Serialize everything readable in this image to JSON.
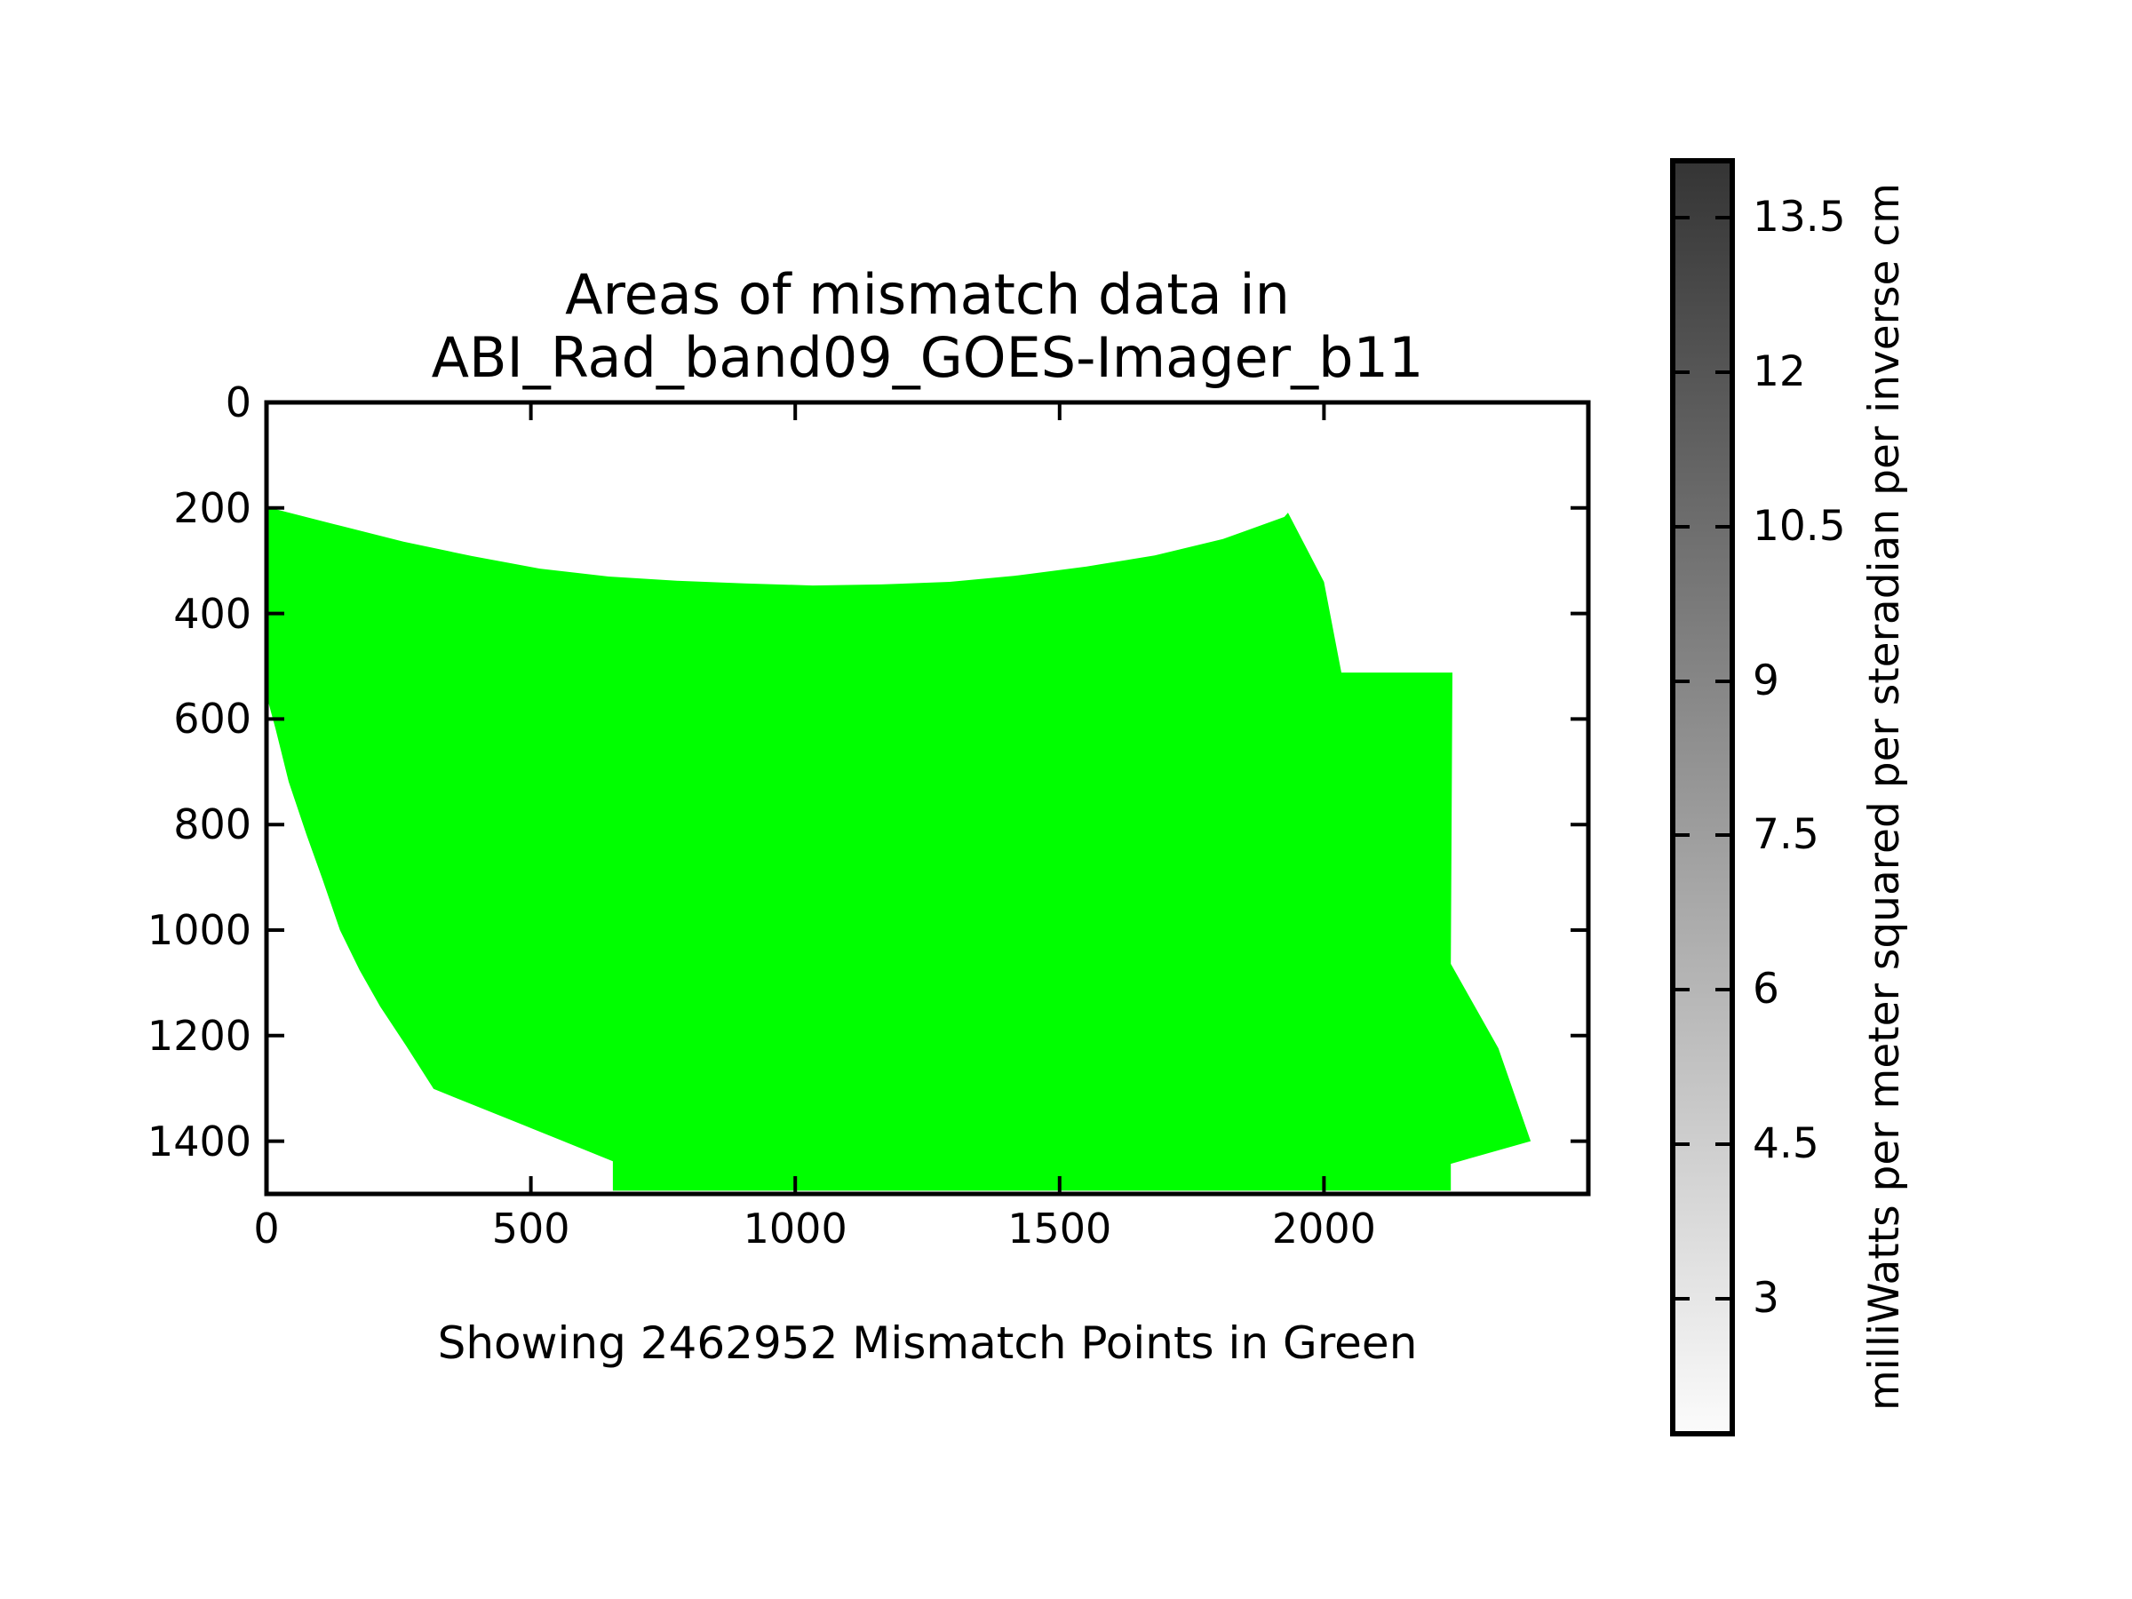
{
  "figure": {
    "title_line1": "Areas of mismatch data in",
    "title_line2": "ABI_Rad_band09_GOES-Imager_b11",
    "caption": "Showing 2462952 Mismatch Points in Green",
    "background_color": "#ffffff",
    "axis_color": "#000000"
  },
  "chart_data": {
    "type": "area",
    "title": "Areas of mismatch data in ABI_Rad_band09_GOES-Imager_b11",
    "subtitle": "Showing 2462952 Mismatch Points in Green",
    "mismatch_point_count": 2462952,
    "region_color": "#00ff00",
    "grid": false,
    "xlim": [
      0,
      2500
    ],
    "ylim": [
      1500,
      0
    ],
    "x_ticks": [
      0,
      500,
      1000,
      1500,
      2000
    ],
    "y_ticks": [
      0,
      200,
      400,
      600,
      800,
      1000,
      1200,
      1400
    ],
    "mismatch_region_polygon": [
      [
        0,
        198
      ],
      [
        129,
        231
      ],
      [
        259,
        264
      ],
      [
        388,
        291
      ],
      [
        517,
        315
      ],
      [
        647,
        330
      ],
      [
        776,
        338
      ],
      [
        904,
        343
      ],
      [
        1033,
        347
      ],
      [
        1163,
        345
      ],
      [
        1292,
        340
      ],
      [
        1421,
        328
      ],
      [
        1551,
        311
      ],
      [
        1680,
        290
      ],
      [
        1809,
        259
      ],
      [
        1925,
        217
      ],
      [
        1932,
        209
      ],
      [
        2000,
        340
      ],
      [
        2033,
        512
      ],
      [
        2243,
        512
      ],
      [
        2240,
        1064
      ],
      [
        2330,
        1224
      ],
      [
        2391,
        1400
      ],
      [
        2240,
        1443
      ],
      [
        2240,
        1494
      ],
      [
        655,
        1494
      ],
      [
        655,
        1438
      ],
      [
        487,
        1370
      ],
      [
        316,
        1301
      ],
      [
        264,
        1219
      ],
      [
        215,
        1145
      ],
      [
        176,
        1076
      ],
      [
        139,
        1000
      ],
      [
        106,
        904
      ],
      [
        76,
        820
      ],
      [
        42,
        719
      ],
      [
        17,
        618
      ],
      [
        4,
        570
      ],
      [
        0,
        556
      ]
    ],
    "colorbar": {
      "label": "milliWatts per meter squared per steradian per inverse cm",
      "vmin": 1.66,
      "vmax": 14.08,
      "ticks": [
        3,
        4.5,
        6,
        7.5,
        9,
        10.5,
        12,
        13.5
      ],
      "bottom_color": "#fbfbfb",
      "top_color": "#353535"
    }
  }
}
